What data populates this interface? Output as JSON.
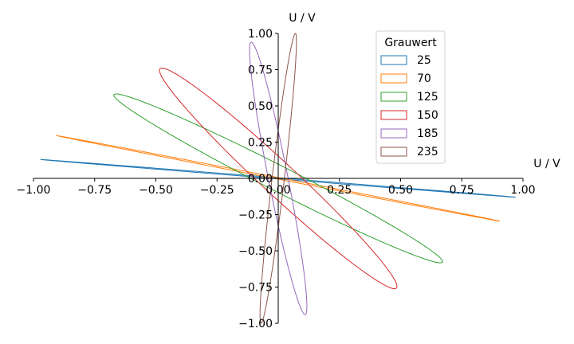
{
  "chart_data": {
    "type": "line",
    "title": "",
    "xlabel": "U / V",
    "ylabel": "U / V",
    "xlim": [
      -1.0,
      1.0
    ],
    "ylim": [
      -1.0,
      1.0
    ],
    "x_ticks": [
      "−1.00",
      "−0.75",
      "−0.50",
      "−0.25",
      "0.00",
      "0.25",
      "0.50",
      "0.75",
      "1.00"
    ],
    "y_ticks": [
      "−1.00",
      "−0.75",
      "−0.50",
      "−0.25",
      "0.00",
      "0.25",
      "0.50",
      "0.75",
      "1.00"
    ],
    "grid": false,
    "legend": {
      "title": "Grauwert",
      "placement": "top-center"
    },
    "series": [
      {
        "name": "25",
        "color": "#1f77b4",
        "a": [
          0.97,
          -0.13
        ],
        "b": [
          0.012,
          0.002
        ]
      },
      {
        "name": "70",
        "color": "#ff7f0e",
        "a": [
          0.905,
          -0.295
        ],
        "b": [
          0.008,
          0.003
        ]
      },
      {
        "name": "125",
        "color": "#2ca02c",
        "a": [
          0.67,
          -0.58
        ],
        "b": [
          0.05,
          0.055
        ]
      },
      {
        "name": "150",
        "color": "#d62728",
        "a": [
          0.48,
          -0.76
        ],
        "b": [
          0.07,
          0.045
        ]
      },
      {
        "name": "185",
        "color": "#9467bd",
        "a": [
          -0.11,
          0.94
        ],
        "b": [
          0.04,
          0.005
        ]
      },
      {
        "name": "235",
        "color": "#8c564b",
        "a": [
          0.07,
          1.0
        ],
        "b": [
          0.025,
          -0.002
        ]
      }
    ]
  }
}
